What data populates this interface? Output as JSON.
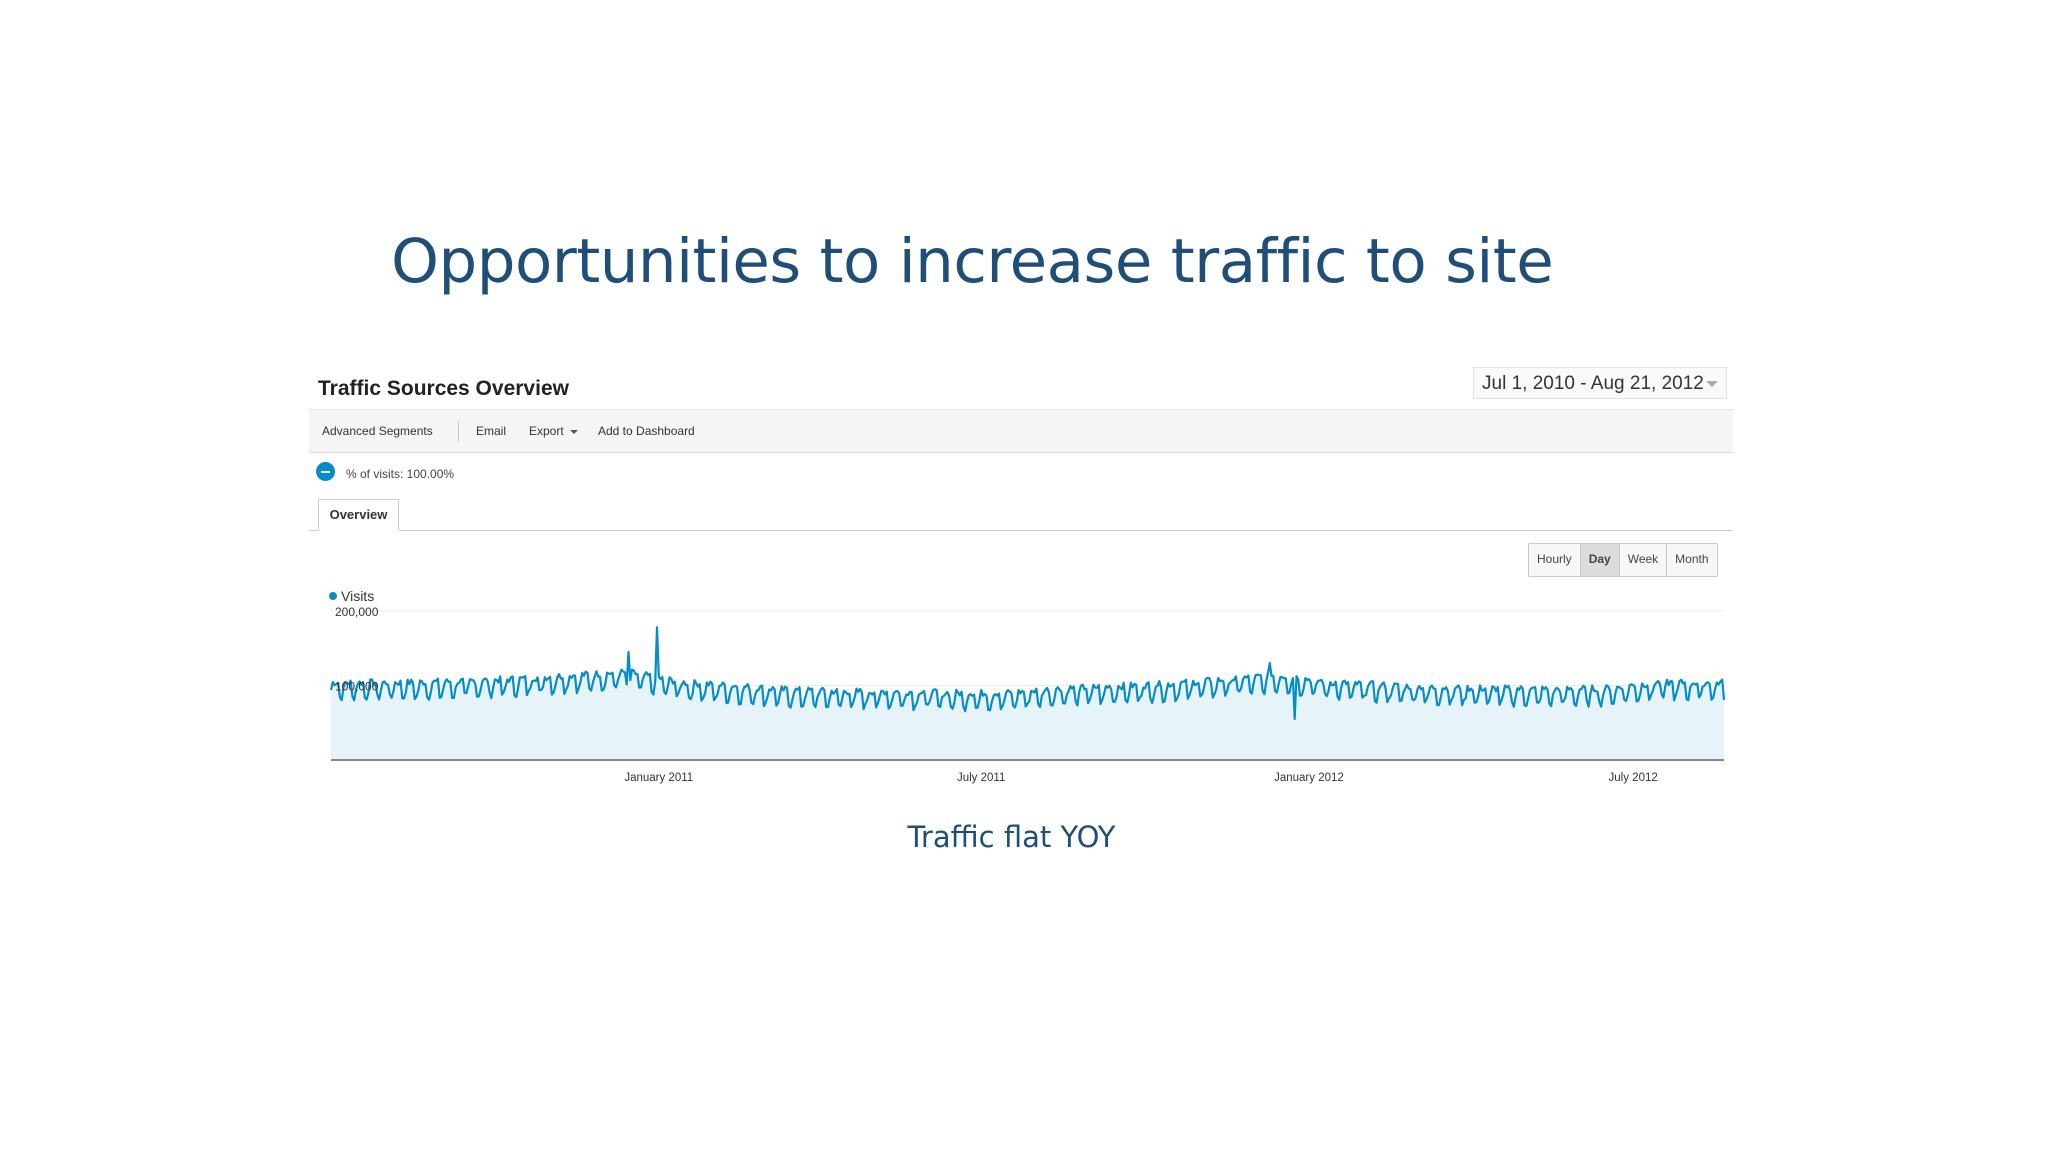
{
  "slide": {
    "title": "Opportunities to increase traffic to site",
    "caption": "Traffic flat YOY"
  },
  "report": {
    "title": "Traffic Sources Overview",
    "date_range": "Jul 1, 2010 - Aug 21, 2012",
    "toolbar": {
      "advanced_segments": "Advanced Segments",
      "email": "Email",
      "export": "Export",
      "add_to_dashboard": "Add to Dashboard"
    },
    "segment_label": "% of visits: 100.00%",
    "tab_overview": "Overview",
    "granularity": {
      "hourly": "Hourly",
      "day": "Day",
      "week": "Week",
      "month": "Month",
      "selected": "Day"
    },
    "legend_visits": "Visits"
  },
  "colors": {
    "title": "#1f4e79",
    "series": "#058dc7",
    "area_fill": "#e6f4fa"
  },
  "chart_data": {
    "type": "area",
    "series": [
      {
        "name": "Visits"
      }
    ],
    "x_range": [
      "2010-07-01",
      "2012-08-21"
    ],
    "ylim": [
      0,
      200000
    ],
    "y_ticks": [
      "200,000",
      "100,000"
    ],
    "x_ticks": [
      "January 2011",
      "July 2011",
      "January 2012",
      "July 2012"
    ],
    "grid": true,
    "monthly_points": [
      {
        "month": "Jul 2010",
        "visits": 100000
      },
      {
        "month": "Aug 2010",
        "visits": 100000
      },
      {
        "month": "Sep 2010",
        "visits": 102000
      },
      {
        "month": "Oct 2010",
        "visits": 105000
      },
      {
        "month": "Nov 2010",
        "visits": 110000
      },
      {
        "month": "Dec 2010",
        "visits": 114000
      },
      {
        "month": "Jan 2011",
        "visits": 100000
      },
      {
        "month": "Feb 2011",
        "visits": 95000
      },
      {
        "month": "Mar 2011",
        "visits": 90000
      },
      {
        "month": "Apr 2011",
        "visits": 88000
      },
      {
        "month": "May 2011",
        "visits": 88000
      },
      {
        "month": "Jun 2011",
        "visits": 86000
      },
      {
        "month": "Jul 2011",
        "visits": 86000
      },
      {
        "month": "Aug 2011",
        "visits": 92000
      },
      {
        "month": "Sep 2011",
        "visits": 95000
      },
      {
        "month": "Oct 2011",
        "visits": 98000
      },
      {
        "month": "Nov 2011",
        "visits": 104000
      },
      {
        "month": "Dec 2011",
        "visits": 110000
      },
      {
        "month": "Jan 2012",
        "visits": 100000
      },
      {
        "month": "Feb 2012",
        "visits": 96000
      },
      {
        "month": "Mar 2012",
        "visits": 93000
      },
      {
        "month": "Apr 2012",
        "visits": 92000
      },
      {
        "month": "May 2012",
        "visits": 91000
      },
      {
        "month": "Jun 2012",
        "visits": 92000
      },
      {
        "month": "Jul 2012",
        "visits": 100000
      },
      {
        "month": "Aug 2012",
        "visits": 100000
      }
    ],
    "spikes": [
      {
        "date": "2010-12-15",
        "visits": 145000
      },
      {
        "date": "2010-12-31",
        "visits": 178000
      },
      {
        "date": "2011-12-10",
        "visits": 130000
      },
      {
        "date": "2011-12-24",
        "visits": 55000
      }
    ]
  }
}
